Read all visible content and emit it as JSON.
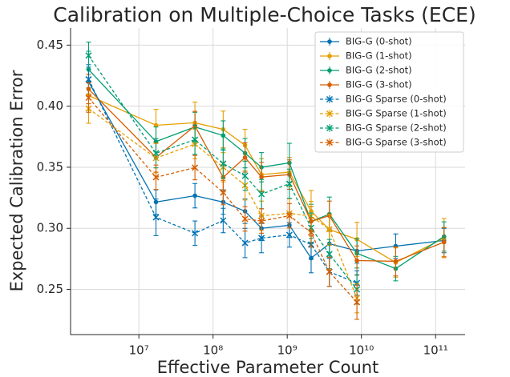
{
  "chart_data": {
    "type": "line",
    "title": "Calibration on Multiple-Choice Tasks (ECE)",
    "xlabel": "Effective Parameter Count",
    "ylabel": "Expected Calibration Error",
    "xscale": "log",
    "xlim": [
      1200000,
      250000000000
    ],
    "ylim": [
      0.213,
      0.464
    ],
    "xticks": [
      {
        "value": 10000000,
        "label": "10⁷"
      },
      {
        "value": 100000000,
        "label": "10⁸"
      },
      {
        "value": 1000000000,
        "label": "10⁹"
      },
      {
        "value": 10000000000,
        "label": "10¹⁰"
      },
      {
        "value": 100000000000,
        "label": "10¹¹"
      }
    ],
    "yticks": [
      0.25,
      {
        "value": 0.3,
        "label": "0.30"
      },
      0.35,
      {
        "value": 0.4,
        "label": "0.40"
      },
      0.45
    ],
    "grid": true,
    "legend": "upper right",
    "series": [
      {
        "name": "BIG-G (0-shot)",
        "color": "#0072b2",
        "linestyle": "solid",
        "marker": "o",
        "x": [
          2100000,
          17000000,
          57000000,
          137000000,
          270000000,
          450000000,
          1070000000,
          2100000000,
          3700000000,
          8700000000,
          29000000000,
          130000000000
        ],
        "values": [
          0.42,
          0.3215,
          0.3267,
          0.3215,
          0.314,
          0.3,
          0.3025,
          0.2756,
          0.2874,
          0.2815,
          0.2854,
          0.29
        ],
        "error": [
          0.012,
          0.01,
          0.01,
          0.01,
          0.01,
          0.01,
          0.01,
          0.012,
          0.012,
          0.01,
          0.01,
          0.01
        ]
      },
      {
        "name": "BIG-G (1-shot)",
        "color": "#e69f00",
        "linestyle": "solid",
        "marker": "o",
        "x": [
          2100000,
          17000000,
          57000000,
          137000000,
          270000000,
          450000000,
          1070000000,
          2100000000,
          3700000000,
          8700000000,
          29000000000,
          130000000000
        ],
        "values": [
          0.4087,
          0.3844,
          0.3864,
          0.381,
          0.368,
          0.344,
          0.346,
          0.314,
          0.299,
          0.291,
          0.272,
          0.292
        ],
        "error": [
          0.012,
          0.013,
          0.017,
          0.015,
          0.013,
          0.013,
          0.012,
          0.017,
          0.013,
          0.014,
          0.012,
          0.016
        ]
      },
      {
        "name": "BIG-G (2-shot)",
        "color": "#009e73",
        "linestyle": "solid",
        "marker": "o",
        "x": [
          2100000,
          17000000,
          57000000,
          137000000,
          270000000,
          450000000,
          1070000000,
          2100000000,
          3700000000,
          8700000000,
          29000000000,
          130000000000
        ],
        "values": [
          0.43,
          0.371,
          0.383,
          0.376,
          0.3615,
          0.35,
          0.3536,
          0.3057,
          0.3116,
          0.2795,
          0.267,
          0.2933
        ],
        "error": [
          0.015,
          0.012,
          0.012,
          0.012,
          0.012,
          0.012,
          0.016,
          0.014,
          0.014,
          0.012,
          0.01,
          0.012
        ]
      },
      {
        "name": "BIG-G (3-shot)",
        "color": "#d55e00",
        "linestyle": "solid",
        "marker": "o",
        "x": [
          2100000,
          17000000,
          57000000,
          137000000,
          270000000,
          450000000,
          1070000000,
          2100000000,
          3700000000,
          8700000000,
          29000000000,
          130000000000
        ],
        "values": [
          0.414,
          0.358,
          0.3838,
          0.3418,
          0.358,
          0.342,
          0.344,
          0.3057,
          0.3103,
          0.2736,
          0.273,
          0.2887
        ],
        "error": [
          0.012,
          0.012,
          0.012,
          0.012,
          0.012,
          0.012,
          0.012,
          0.012,
          0.012,
          0.012,
          0.012,
          0.012
        ]
      },
      {
        "name": "BIG-G Sparse (0-shot)",
        "color": "#0072b2",
        "linestyle": "dashed",
        "marker": "x",
        "x": [
          2100000,
          17000000,
          57000000,
          137000000,
          270000000,
          450000000,
          1070000000,
          2100000000,
          3700000000,
          8700000000
        ],
        "values": [
          0.422,
          0.309,
          0.296,
          0.3064,
          0.288,
          0.292,
          0.2946,
          0.2867,
          0.2644,
          0.2552
        ],
        "error": [
          0.012,
          0.015,
          0.01,
          0.01,
          0.012,
          0.012,
          0.01,
          0.012,
          0.012,
          0.01
        ]
      },
      {
        "name": "BIG-G Sparse (1-shot)",
        "color": "#e69f00",
        "linestyle": "dashed",
        "marker": "x",
        "x": [
          2100000,
          17000000,
          57000000,
          137000000,
          270000000,
          450000000,
          1070000000,
          2100000000,
          3700000000,
          8700000000
        ],
        "values": [
          0.398,
          0.3575,
          0.369,
          0.35,
          0.3352,
          0.3103,
          0.3122,
          0.31,
          0.2992,
          0.2428
        ],
        "error": [
          0.012,
          0.012,
          0.012,
          0.012,
          0.012,
          0.012,
          0.012,
          0.012,
          0.012,
          0.012
        ]
      },
      {
        "name": "BIG-G Sparse (2-shot)",
        "color": "#009e73",
        "linestyle": "dashed",
        "marker": "x",
        "x": [
          2100000,
          17000000,
          57000000,
          137000000,
          270000000,
          450000000,
          1070000000,
          2100000000,
          3700000000,
          8700000000
        ],
        "values": [
          0.4415,
          0.3615,
          0.3726,
          0.353,
          0.343,
          0.328,
          0.3365,
          0.3005,
          0.2789,
          0.25
        ],
        "error": [
          0.011,
          0.012,
          0.012,
          0.012,
          0.012,
          0.012,
          0.012,
          0.012,
          0.012,
          0.012
        ]
      },
      {
        "name": "BIG-G Sparse (3-shot)",
        "color": "#d55e00",
        "linestyle": "dashed",
        "marker": "x",
        "x": [
          2100000,
          17000000,
          57000000,
          137000000,
          270000000,
          450000000,
          1070000000,
          2100000000,
          3700000000,
          8700000000
        ],
        "values": [
          0.407,
          0.3418,
          0.3497,
          0.3293,
          0.3077,
          0.306,
          0.3103,
          0.2966,
          0.2644,
          0.2395
        ],
        "error": [
          0.012,
          0.01,
          0.01,
          0.01,
          0.01,
          0.01,
          0.01,
          0.012,
          0.012,
          0.014
        ]
      }
    ]
  }
}
